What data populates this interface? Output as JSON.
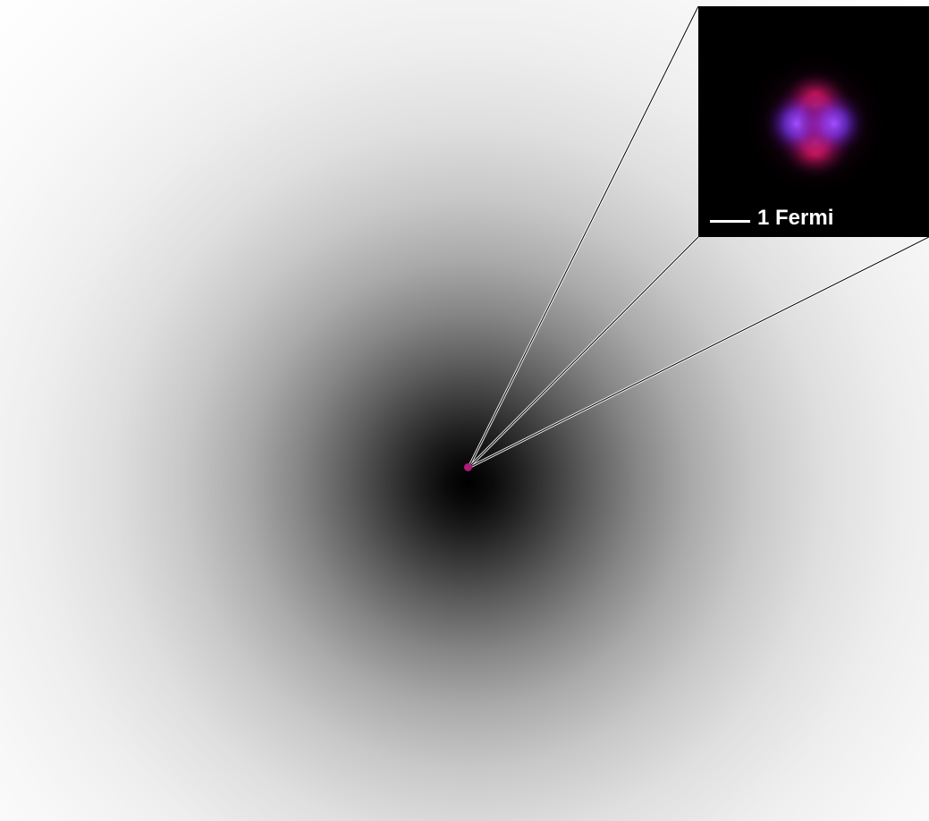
{
  "colors": {
    "background": "#ffffff",
    "halo_center": "#000000",
    "inset_background": "#000000",
    "nucleus_red": "#ff1a6e",
    "nucleus_blue": "#7a3cff",
    "zoom_line": "#ffffff",
    "scale_bar": "#ffffff",
    "center_dot": "#b01a78"
  },
  "inset": {
    "scale_label": "1 Fermi"
  }
}
